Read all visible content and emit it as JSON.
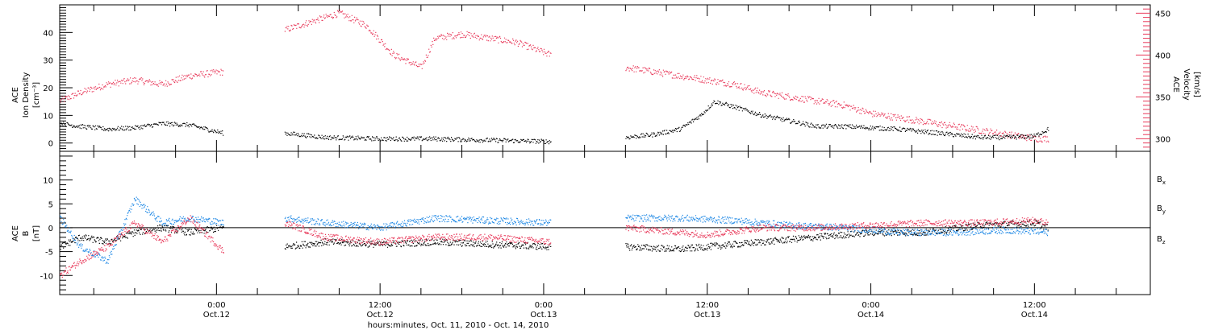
{
  "figure": {
    "x_axis_title": "hours:minutes, Oct. 11, 2010 - Oct. 14, 2010",
    "x_tick_labels": [
      {
        "time": "0:00",
        "date": "Oct.12",
        "hour": 24
      },
      {
        "time": "12:00",
        "date": "Oct.12",
        "hour": 36
      },
      {
        "time": "0:00",
        "date": "Oct.13",
        "hour": 48
      },
      {
        "time": "12:00",
        "date": "Oct.13",
        "hour": 60
      },
      {
        "time": "0:00",
        "date": "Oct.14",
        "hour": 72
      },
      {
        "time": "12:00",
        "date": "Oct.14",
        "hour": 84
      }
    ],
    "x_range_hours": [
      12.5,
      92.5
    ]
  },
  "chart_data": [
    {
      "type": "scatter",
      "panel": "top",
      "ylabel_left": [
        "ACE",
        "Ion Density",
        "[cm⁻³]"
      ],
      "ylabel_right": [
        "ACE",
        "Velocity",
        "[km/s]"
      ],
      "ylim_left": [
        -3,
        50
      ],
      "yticks_left": [
        0,
        10,
        20,
        30,
        40
      ],
      "ylim_right": [
        285,
        460
      ],
      "yticks_right": [
        300,
        350,
        400,
        450
      ],
      "series": [
        {
          "axis": "left",
          "color": "#000000",
          "segments": [
            {
              "x": [
                12.5,
                14,
                16,
                18,
                20,
                22,
                24.5
              ],
              "y": [
                7,
                6,
                5,
                5.5,
                7,
                6.5,
                3.5
              ]
            },
            {
              "x": [
                29,
                32,
                36,
                40,
                44,
                48.5
              ],
              "y": [
                3.5,
                2,
                1.5,
                1.5,
                1,
                0.5
              ]
            },
            {
              "x": [
                54,
                56,
                58,
                59.5,
                60.5,
                62,
                64,
                66,
                68,
                70,
                72,
                74,
                76,
                78,
                80,
                82,
                84,
                85
              ],
              "y": [
                2,
                3,
                5,
                10,
                15,
                13,
                10,
                8,
                6,
                6,
                5.5,
                5,
                4,
                3,
                2,
                2,
                2.5,
                5
              ]
            }
          ]
        },
        {
          "axis": "right",
          "color": "#e8395a",
          "segments": [
            {
              "x": [
                12.5,
                14,
                16,
                18,
                20,
                22,
                24.5
              ],
              "y": [
                345,
                355,
                365,
                370,
                365,
                375,
                380
              ]
            },
            {
              "x": [
                29,
                31,
                33,
                35,
                37,
                39,
                40,
                42,
                44,
                46,
                48.5
              ],
              "y": [
                430,
                440,
                450,
                435,
                400,
                385,
                420,
                425,
                420,
                415,
                400
              ]
            },
            {
              "x": [
                54,
                56,
                58,
                60,
                62,
                64,
                66,
                68,
                70,
                72,
                74,
                76,
                78,
                80,
                82,
                84,
                85
              ],
              "y": [
                385,
                380,
                375,
                370,
                365,
                355,
                350,
                345,
                340,
                330,
                325,
                320,
                315,
                310,
                305,
                300,
                300
              ]
            }
          ]
        }
      ]
    },
    {
      "type": "scatter",
      "panel": "bottom",
      "ylabel": [
        "ACE",
        "B",
        "[nT]"
      ],
      "ylim": [
        -14,
        16
      ],
      "yticks": [
        -10,
        -5,
        0,
        5,
        10
      ],
      "legend": [
        "B",
        "B",
        "B"
      ],
      "series": [
        {
          "name_sub": "x",
          "color": "#000000",
          "segments": [
            {
              "x": [
                12.5,
                14,
                16,
                18,
                20,
                22,
                24.5
              ],
              "y": [
                -4,
                -2,
                -3,
                -1,
                0,
                -1,
                0
              ]
            },
            {
              "x": [
                29,
                32,
                36,
                40,
                44,
                48.5
              ],
              "y": [
                -4,
                -3,
                -3.5,
                -3,
                -3.5,
                -4
              ]
            },
            {
              "x": [
                54,
                58,
                60,
                64,
                68,
                72,
                76,
                80,
                84,
                85
              ],
              "y": [
                -4,
                -4.5,
                -4,
                -3,
                -2,
                -1,
                -1,
                0.5,
                1,
                0
              ]
            }
          ]
        },
        {
          "name_sub": "y",
          "color": "#1e88e5",
          "segments": [
            {
              "x": [
                12.5,
                14,
                16,
                18,
                20,
                22,
                24.5
              ],
              "y": [
                2,
                -4,
                -7,
                6,
                1,
                2,
                1
              ]
            },
            {
              "x": [
                29,
                32,
                36,
                40,
                44,
                48.5
              ],
              "y": [
                2,
                1,
                0,
                2,
                1.5,
                1
              ]
            },
            {
              "x": [
                54,
                58,
                62,
                66,
                70,
                74,
                78,
                82,
                85
              ],
              "y": [
                2,
                2,
                1.5,
                0.5,
                0,
                -1,
                -1,
                -0.5,
                -1
              ]
            }
          ]
        },
        {
          "name_sub": "z",
          "color": "#e8395a",
          "segments": [
            {
              "x": [
                12.5,
                14,
                16,
                18,
                20,
                22,
                24.5
              ],
              "y": [
                -10,
                -7,
                -4,
                1,
                -3,
                2,
                -5
              ]
            },
            {
              "x": [
                29,
                32,
                36,
                40,
                44,
                48.5
              ],
              "y": [
                1,
                -2,
                -3,
                -2,
                -2,
                -3
              ]
            },
            {
              "x": [
                54,
                58,
                60,
                64,
                68,
                72,
                76,
                80,
                84,
                85
              ],
              "y": [
                0,
                -1,
                -1.5,
                0,
                0,
                0.5,
                1,
                1,
                1.5,
                1
              ]
            }
          ]
        }
      ]
    }
  ]
}
